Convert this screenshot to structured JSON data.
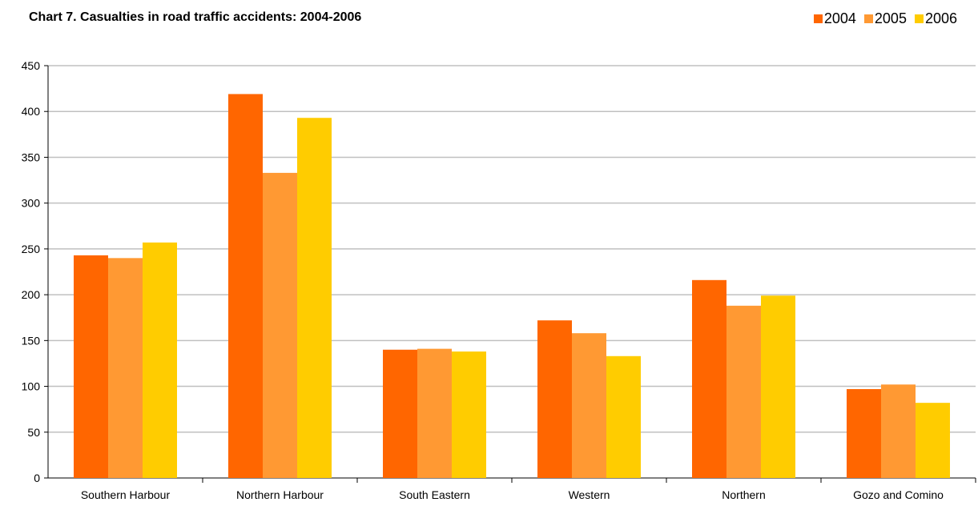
{
  "chart_data": {
    "type": "bar",
    "title": "Chart 7. Casualties in road traffic accidents: 2004-2006",
    "xlabel": "",
    "ylabel": "",
    "ylim": [
      0,
      450
    ],
    "yticks": [
      0,
      50,
      100,
      150,
      200,
      250,
      300,
      350,
      400,
      450
    ],
    "grid": true,
    "legend_position": "top-right",
    "categories": [
      "Southern Harbour",
      "Northern Harbour",
      "South Eastern",
      "Western",
      "Northern",
      "Gozo and Comino"
    ],
    "series": [
      {
        "name": "2004",
        "color": "#ff6600",
        "values": [
          243,
          419,
          140,
          172,
          216,
          97
        ]
      },
      {
        "name": "2005",
        "color": "#ff9933",
        "values": [
          240,
          333,
          141,
          158,
          188,
          102
        ]
      },
      {
        "name": "2006",
        "color": "#ffcc00",
        "values": [
          257,
          393,
          138,
          133,
          199,
          82
        ]
      }
    ]
  }
}
